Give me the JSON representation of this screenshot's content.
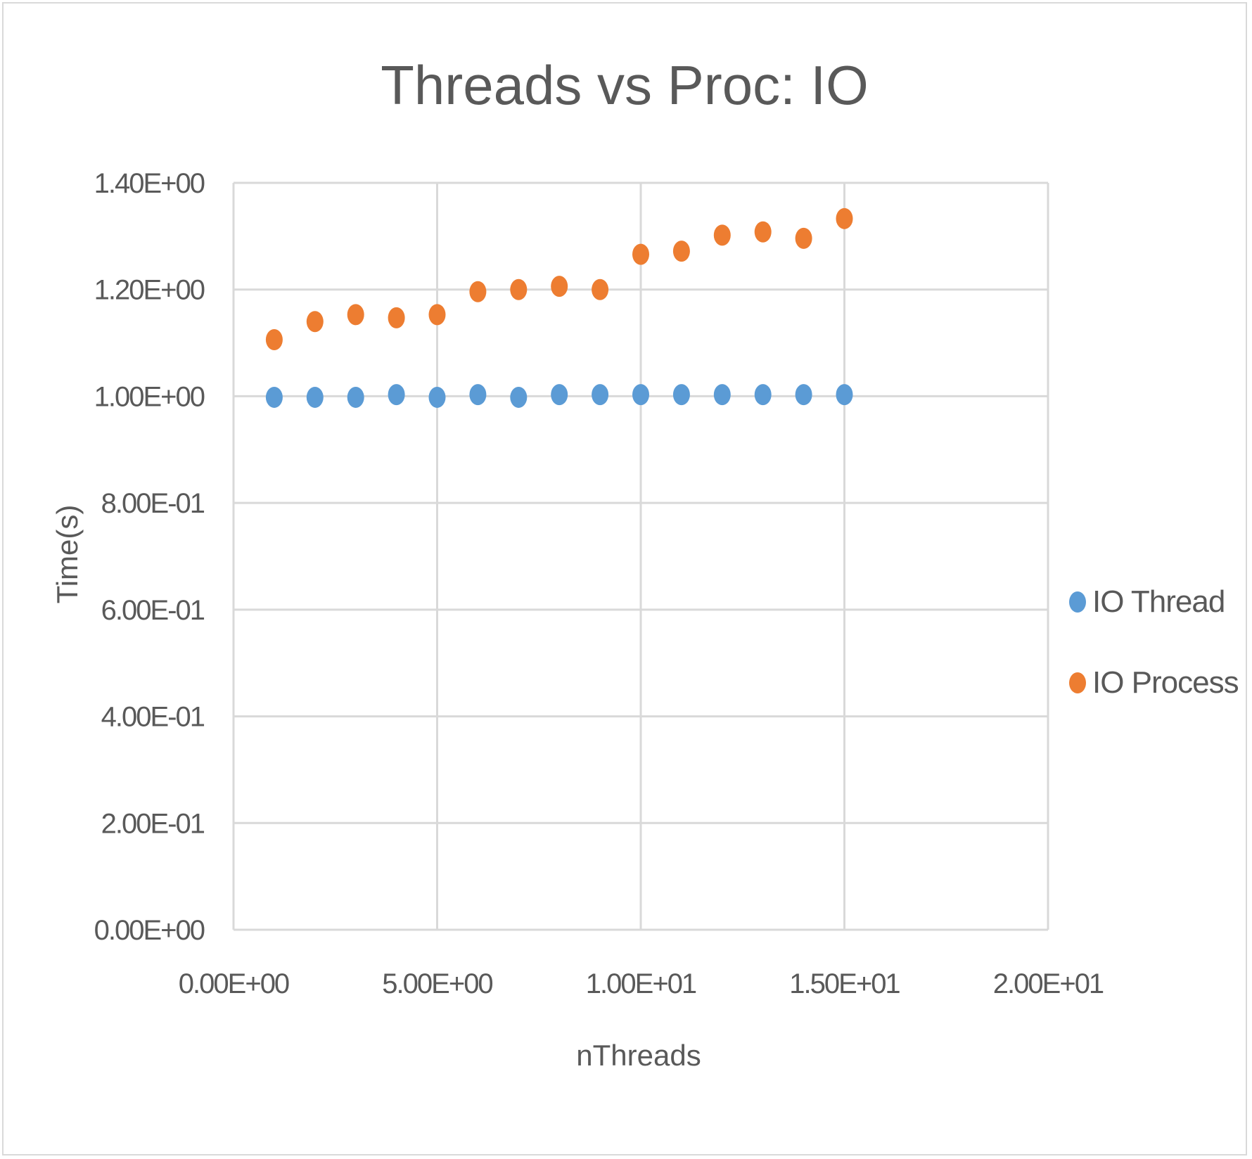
{
  "chart_data": {
    "type": "scatter",
    "title": "Threads vs Proc: IO",
    "xlabel": "nThreads",
    "ylabel": "Time(s)",
    "xlim": [
      0,
      20
    ],
    "ylim": [
      0,
      1.4
    ],
    "x_ticks": [
      0,
      5,
      10,
      15,
      20
    ],
    "x_tick_labels": [
      "0.00E+00",
      "5.00E+00",
      "1.00E+01",
      "1.50E+01",
      "2.00E+01"
    ],
    "y_ticks": [
      0,
      0.2,
      0.4,
      0.6,
      0.8,
      1.0,
      1.2,
      1.4
    ],
    "y_tick_labels": [
      "0.00E+00",
      "2.00E-01",
      "4.00E-01",
      "6.00E-01",
      "8.00E-01",
      "1.00E+00",
      "1.20E+00",
      "1.40E+00"
    ],
    "grid": true,
    "legend_position": "right",
    "series": [
      {
        "name": "IO Thread",
        "color": "#5b9bd5",
        "x": [
          1,
          2,
          3,
          4,
          5,
          6,
          7,
          8,
          9,
          10,
          11,
          12,
          13,
          14,
          15
        ],
        "y": [
          0.998,
          0.998,
          0.998,
          1.003,
          0.998,
          1.003,
          0.998,
          1.003,
          1.003,
          1.003,
          1.003,
          1.003,
          1.003,
          1.003,
          1.003
        ]
      },
      {
        "name": "IO Process",
        "color": "#ed7d31",
        "x": [
          1,
          2,
          3,
          4,
          5,
          6,
          7,
          8,
          9,
          10,
          11,
          12,
          13,
          14,
          15
        ],
        "y": [
          1.106,
          1.14,
          1.153,
          1.147,
          1.153,
          1.196,
          1.2,
          1.206,
          1.2,
          1.266,
          1.272,
          1.302,
          1.308,
          1.296,
          1.333
        ]
      }
    ]
  }
}
